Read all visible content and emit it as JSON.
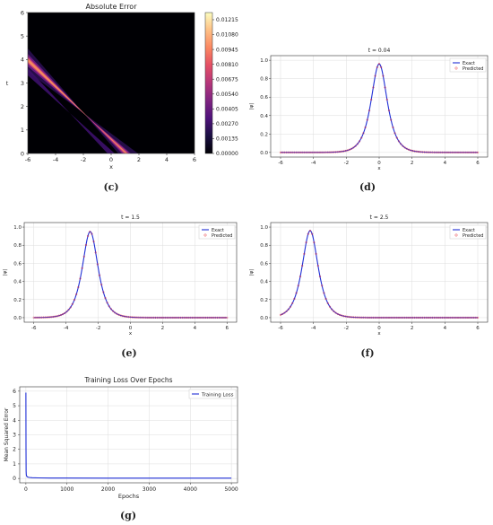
{
  "captions": [
    "(c)",
    "(d)",
    "(e)",
    "(f)",
    "(g)"
  ],
  "chart_data": [
    {
      "type": "heatmap",
      "title": "Absolute Error",
      "xlabel": "x",
      "ylabel": "t",
      "xlim": [
        -6,
        6
      ],
      "ylim": [
        0,
        6
      ],
      "xticks": [
        "-6",
        "-4",
        "-2",
        "0",
        "2",
        "4",
        "6"
      ],
      "yticks": [
        "0",
        "1",
        "2",
        "3",
        "4",
        "5",
        "6"
      ],
      "colorbar_ticks": [
        "0.00000",
        "0.00135",
        "0.00270",
        "0.00405",
        "0.00540",
        "0.00675",
        "0.00810",
        "0.00945",
        "0.01080",
        "0.01215"
      ],
      "colormap": "magma",
      "max_value": 0.0128
    },
    {
      "type": "line",
      "title": "t = 0.04",
      "xlabel": "x",
      "ylabel": "|ψ|",
      "xlim": [
        -6,
        6
      ],
      "ylim": [
        0,
        1.05
      ],
      "xticks": [
        "-6",
        "-4",
        "-2",
        "0",
        "2",
        "4",
        "6"
      ],
      "yticks": [
        "0.0",
        "0.2",
        "0.4",
        "0.6",
        "0.8",
        "1.0"
      ],
      "peak_center": 0,
      "peak_height": 0.96,
      "legend": [
        "Exact",
        "Predicted"
      ],
      "legend_position": "top-right",
      "grid": true
    },
    {
      "type": "line",
      "title": "t = 1.5",
      "xlabel": "x",
      "ylabel": "|ψ|",
      "xlim": [
        -6,
        6
      ],
      "ylim": [
        0,
        1.05
      ],
      "xticks": [
        "-6",
        "-4",
        "-2",
        "0",
        "2",
        "4",
        "6"
      ],
      "yticks": [
        "0.0",
        "0.2",
        "0.4",
        "0.6",
        "0.8",
        "1.0"
      ],
      "peak_center": -2.5,
      "peak_height": 0.95,
      "legend": [
        "Exact",
        "Predicted"
      ],
      "legend_position": "top-right",
      "grid": true
    },
    {
      "type": "line",
      "title": "t = 2.5",
      "xlabel": "x",
      "ylabel": "|ψ|",
      "xlim": [
        -6,
        6
      ],
      "ylim": [
        0,
        1.05
      ],
      "xticks": [
        "-6",
        "-4",
        "-2",
        "0",
        "2",
        "4",
        "6"
      ],
      "yticks": [
        "0.0",
        "0.2",
        "0.4",
        "0.6",
        "0.8",
        "1.0"
      ],
      "peak_center": -4.2,
      "peak_height": 0.96,
      "legend": [
        "Exact",
        "Predicted"
      ],
      "legend_position": "top-right",
      "grid": true
    },
    {
      "type": "line",
      "title": "Training Loss Over Epochs",
      "xlabel": "Epochs",
      "ylabel": "Mean Squared Error",
      "xlim": [
        -150,
        5150
      ],
      "ylim": [
        -0.3,
        6.3
      ],
      "xticks": [
        "0",
        "1000",
        "2000",
        "3000",
        "4000",
        "5000"
      ],
      "xtick_values": [
        0,
        1000,
        2000,
        3000,
        4000,
        5000
      ],
      "yticks": [
        "0",
        "1",
        "2",
        "3",
        "4",
        "5",
        "6"
      ],
      "series": [
        {
          "name": "Training Loss",
          "x": [
            0,
            3,
            6,
            10,
            20,
            40,
            80,
            150,
            300,
            600,
            1000,
            2000,
            3000,
            4000,
            5000
          ],
          "y": [
            5.9,
            2.0,
            0.5,
            0.25,
            0.15,
            0.1,
            0.07,
            0.05,
            0.04,
            0.03,
            0.03,
            0.02,
            0.02,
            0.02,
            0.02
          ]
        }
      ],
      "legend_position": "top-right",
      "grid": true
    }
  ]
}
